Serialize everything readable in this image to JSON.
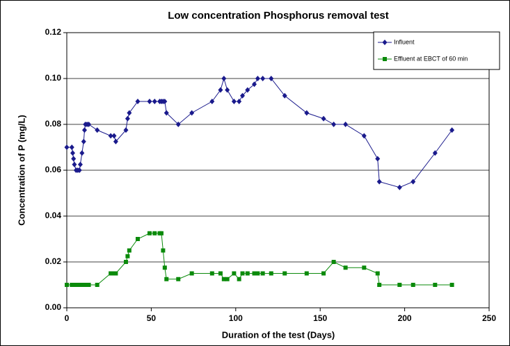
{
  "chart_data": {
    "type": "line",
    "title": "Low concentration  Phosphorus removal test",
    "xlabel": "Duration of the test (Days)",
    "ylabel": "Concentration of P (mg/L)",
    "x": [
      0,
      3,
      3.5,
      4,
      4.5,
      5.5,
      6.5,
      7.5,
      8,
      9,
      10,
      10.5,
      11,
      12,
      13,
      18,
      26,
      28,
      29,
      35,
      36,
      37,
      42,
      49,
      52,
      55,
      56,
      57,
      58,
      59,
      66,
      74,
      86,
      91,
      93,
      95,
      99,
      102,
      104,
      107,
      111,
      113,
      116,
      121,
      129,
      142,
      152,
      158,
      165,
      176,
      184,
      185,
      197,
      205,
      218,
      228
    ],
    "series": [
      {
        "name": "Influent",
        "color": "#1a1a8c",
        "marker": "diamond",
        "values": [
          0.07,
          0.07,
          0.0675,
          0.065,
          0.0625,
          0.06,
          0.06,
          0.06,
          0.0625,
          0.0675,
          0.0725,
          0.0775,
          0.08,
          0.08,
          0.08,
          0.0775,
          0.075,
          0.075,
          0.0725,
          0.0775,
          0.0825,
          0.085,
          0.09,
          0.09,
          0.09,
          0.09,
          0.09,
          0.09,
          0.09,
          0.085,
          0.08,
          0.085,
          0.09,
          0.095,
          0.1,
          0.095,
          0.09,
          0.09,
          0.0925,
          0.095,
          0.0975,
          0.1,
          0.1,
          0.1,
          0.0925,
          0.085,
          0.0825,
          0.08,
          0.08,
          0.075,
          0.065,
          0.055,
          0.0525,
          0.055,
          0.0675,
          0.0775
        ]
      },
      {
        "name": "Effluent at EBCT of 60 min",
        "color": "#0a8a0a",
        "marker": "square",
        "values": [
          0.01,
          0.01,
          0.01,
          0.01,
          0.01,
          0.01,
          0.01,
          0.01,
          0.01,
          0.01,
          0.01,
          0.01,
          0.01,
          0.01,
          0.01,
          0.01,
          0.015,
          0.015,
          0.015,
          0.02,
          0.0225,
          0.025,
          0.03,
          0.0325,
          0.0325,
          0.0325,
          0.0325,
          0.025,
          0.0175,
          0.0125,
          0.0125,
          0.015,
          0.015,
          0.015,
          0.0125,
          0.0125,
          0.015,
          0.0125,
          0.015,
          0.015,
          0.015,
          0.015,
          0.015,
          0.015,
          0.015,
          0.015,
          0.015,
          0.02,
          0.0175,
          0.0175,
          0.015,
          0.01,
          0.01,
          0.01,
          0.01,
          0.01
        ]
      }
    ],
    "xlim": [
      0,
      250
    ],
    "xticks": [
      0,
      50,
      100,
      150,
      200,
      250
    ],
    "ylim": [
      0,
      0.12
    ],
    "yticks": [
      {
        "value": 0,
        "label": "0.00"
      },
      {
        "value": 0.02,
        "label": "0.02"
      },
      {
        "value": 0.04,
        "label": "0.04"
      },
      {
        "value": 0.06,
        "label": "0.06"
      },
      {
        "value": 0.08,
        "label": "0.08"
      },
      {
        "value": 0.1,
        "label": "0.10"
      },
      {
        "value": 0.12,
        "label": "0.12"
      }
    ],
    "grid": true,
    "legend": "upper right"
  }
}
